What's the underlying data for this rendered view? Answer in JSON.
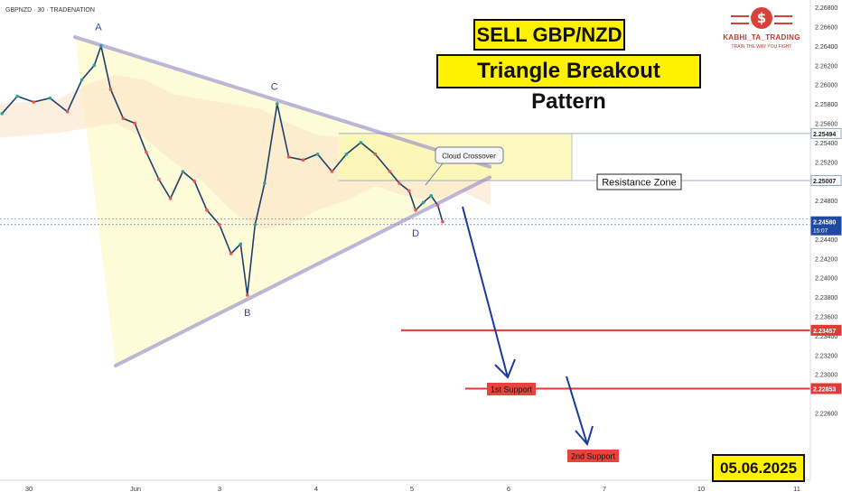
{
  "symbol_header": "GBPNZD · 30 · TRADENATION",
  "title_primary": "SELL GBP/NZD",
  "title_secondary": "Triangle Breakout Pattern",
  "date_label": "05.06.2025",
  "logo": {
    "brand": "KABHI_TA_TRADING",
    "tagline": "TRAIN THE WAY YOU FIGHT"
  },
  "colors": {
    "accent_red": "#e53935",
    "arrow_blue": "#1a3a9c",
    "price_tag": "#1f4aa3",
    "triangle_line": "#8a7cc8",
    "title_bg": "#fff200"
  },
  "chart_data": {
    "type": "line",
    "title": "",
    "xlabel": "",
    "ylabel": "",
    "ylim": [
      2.2255,
      2.2682
    ],
    "x_ticks": [
      "30",
      "Jun",
      "3",
      "4",
      "5",
      "6",
      "7",
      "10",
      "11"
    ],
    "y_ticks": [
      "2.26800",
      "2.26600",
      "2.26400",
      "2.26200",
      "2.26000",
      "2.25800",
      "2.25600",
      "2.25400",
      "2.25200",
      "2.25000",
      "2.24800",
      "2.24400",
      "2.24200",
      "2.24000",
      "2.23800",
      "2.23600",
      "2.23400",
      "2.23200",
      "2.23000",
      "2.22600"
    ],
    "price_tags": [
      {
        "value": 2.25494,
        "label": "2.25494",
        "style": "box-grey"
      },
      {
        "value": 2.25007,
        "label": "2.25007",
        "style": "box-grey"
      },
      {
        "value": 2.2458,
        "label": "2.24580",
        "sub": "15:07",
        "style": "box-blue"
      },
      {
        "value": 2.23457,
        "label": "2.23457",
        "style": "box-red"
      },
      {
        "value": 2.22853,
        "label": "2.22853",
        "style": "box-red"
      }
    ],
    "pivot_points": [
      {
        "label": "A",
        "x_day": 0.75,
        "price": 2.26415
      },
      {
        "label": "B",
        "x_day": 2.27,
        "price": 2.238
      },
      {
        "label": "C",
        "x_day": 2.58,
        "price": 2.25825
      },
      {
        "label": "D",
        "x_day": 4.02,
        "price": 2.2456
      }
    ],
    "annotations": [
      {
        "text": "Cloud Crossover"
      },
      {
        "text": "Resistance Zone"
      },
      {
        "text": "1st Support"
      },
      {
        "text": "2nd Support"
      }
    ],
    "levels": {
      "resistance_top": 2.25494,
      "resistance_bottom": 2.25007,
      "support_1": 2.23457,
      "support_2": 2.22853,
      "last_price": 2.2458
    },
    "triangle": {
      "upper": [
        {
          "x_day": 0.48,
          "price": 2.26492
        },
        {
          "x_day": 4.79,
          "price": 2.2515
        }
      ],
      "lower": [
        {
          "x_day": 0.9,
          "price": 2.2309
        },
        {
          "x_day": 4.79,
          "price": 2.2504
        }
      ]
    },
    "close_series": [
      {
        "x_day": -0.28,
        "price": 2.257
      },
      {
        "x_day": -0.12,
        "price": 2.2588
      },
      {
        "x_day": 0.05,
        "price": 2.2582
      },
      {
        "x_day": 0.22,
        "price": 2.2586
      },
      {
        "x_day": 0.4,
        "price": 2.2572
      },
      {
        "x_day": 0.55,
        "price": 2.2605
      },
      {
        "x_day": 0.68,
        "price": 2.262
      },
      {
        "x_day": 0.75,
        "price": 2.264
      },
      {
        "x_day": 0.85,
        "price": 2.2595
      },
      {
        "x_day": 0.98,
        "price": 2.2565
      },
      {
        "x_day": 1.1,
        "price": 2.256
      },
      {
        "x_day": 1.22,
        "price": 2.253
      },
      {
        "x_day": 1.35,
        "price": 2.2502
      },
      {
        "x_day": 1.47,
        "price": 2.2482
      },
      {
        "x_day": 1.6,
        "price": 2.251
      },
      {
        "x_day": 1.72,
        "price": 2.25
      },
      {
        "x_day": 1.85,
        "price": 2.247
      },
      {
        "x_day": 1.98,
        "price": 2.2455
      },
      {
        "x_day": 2.1,
        "price": 2.2425
      },
      {
        "x_day": 2.2,
        "price": 2.2435
      },
      {
        "x_day": 2.27,
        "price": 2.2382
      },
      {
        "x_day": 2.35,
        "price": 2.2455
      },
      {
        "x_day": 2.45,
        "price": 2.2498
      },
      {
        "x_day": 2.58,
        "price": 2.258
      },
      {
        "x_day": 2.7,
        "price": 2.2525
      },
      {
        "x_day": 2.85,
        "price": 2.2522
      },
      {
        "x_day": 3.0,
        "price": 2.2528
      },
      {
        "x_day": 3.15,
        "price": 2.251
      },
      {
        "x_day": 3.3,
        "price": 2.2528
      },
      {
        "x_day": 3.45,
        "price": 2.254
      },
      {
        "x_day": 3.6,
        "price": 2.2528
      },
      {
        "x_day": 3.75,
        "price": 2.251
      },
      {
        "x_day": 3.85,
        "price": 2.2498
      },
      {
        "x_day": 3.95,
        "price": 2.249
      },
      {
        "x_day": 4.02,
        "price": 2.247
      },
      {
        "x_day": 4.1,
        "price": 2.2478
      },
      {
        "x_day": 4.18,
        "price": 2.2485
      },
      {
        "x_day": 4.25,
        "price": 2.2475
      },
      {
        "x_day": 4.3,
        "price": 2.2458
      }
    ]
  }
}
